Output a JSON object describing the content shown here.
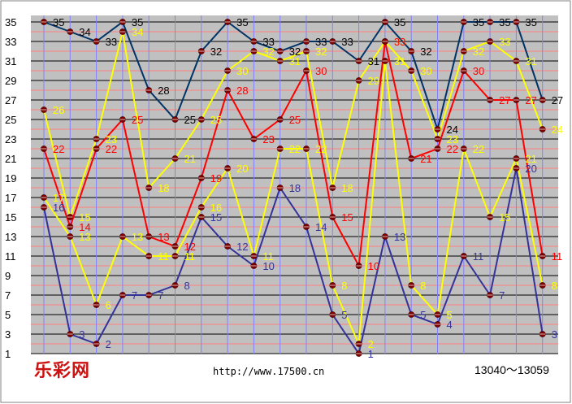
{
  "footer": {
    "logo": "乐彩网",
    "url": "http://www.17500.cn",
    "range": "13040～13059"
  },
  "colors": {
    "background": "#c0c0c0",
    "grid_h": "#000000",
    "grid_v": "#8080ff",
    "grid_minor": "#ff8080",
    "marker": "#800000"
  },
  "chart_data": {
    "type": "line",
    "ylim": [
      1,
      35
    ],
    "yticks": [
      1,
      3,
      5,
      7,
      9,
      11,
      13,
      15,
      17,
      19,
      21,
      23,
      25,
      27,
      29,
      31,
      33,
      35
    ],
    "x": [
      1,
      2,
      3,
      4,
      5,
      6,
      7,
      8,
      9,
      10,
      11,
      12,
      13,
      14,
      15,
      16,
      17,
      18,
      19,
      20
    ],
    "series": [
      {
        "color": "#003366",
        "values": [
          35,
          34,
          33,
          35,
          28,
          25,
          32,
          35,
          33,
          32,
          33,
          33,
          31,
          35,
          32,
          24,
          35,
          35,
          35,
          27
        ]
      },
      {
        "color": "#ffff00",
        "values": [
          26,
          15,
          23,
          34,
          18,
          21,
          25,
          30,
          32,
          31,
          32,
          18,
          29,
          33,
          30,
          23,
          32,
          33,
          31,
          24
        ]
      },
      {
        "color": "#ff0000",
        "values": [
          22,
          14,
          22,
          25,
          13,
          12,
          19,
          28,
          23,
          25,
          30,
          15,
          10,
          33,
          21,
          22,
          30,
          27,
          27,
          11
        ]
      },
      {
        "color": "#ffff00",
        "values": [
          17,
          13,
          6,
          13,
          11,
          11,
          16,
          20,
          11,
          22,
          22,
          8,
          2,
          31,
          8,
          5,
          22,
          15,
          21,
          8
        ]
      },
      {
        "color": "#333399",
        "values": [
          16,
          3,
          2,
          7,
          7,
          8,
          15,
          12,
          10,
          18,
          14,
          5,
          1,
          13,
          5,
          4,
          11,
          7,
          20,
          3
        ]
      }
    ]
  }
}
